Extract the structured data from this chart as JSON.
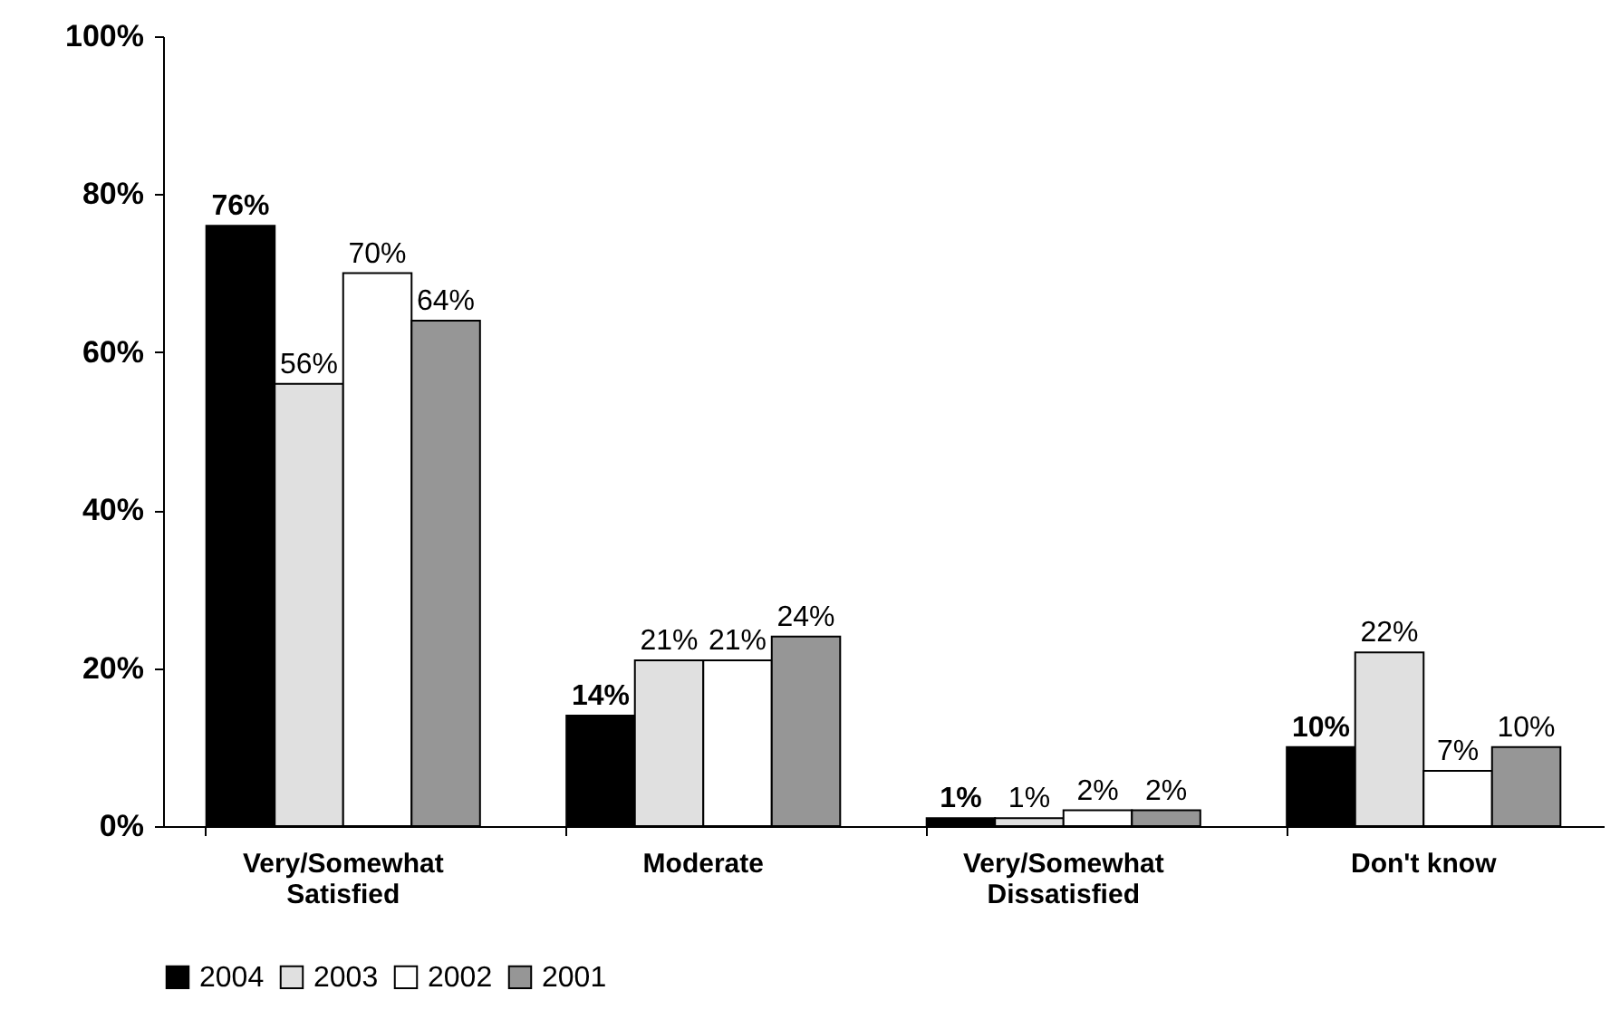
{
  "chart_data": {
    "type": "bar",
    "categories": [
      "Very/Somewhat Satisfied",
      "Moderate",
      "Very/Somewhat Dissatisfied",
      "Don't know"
    ],
    "series": [
      {
        "name": "2004",
        "color": "#000000",
        "values": [
          76,
          14,
          1,
          10
        ],
        "value_labels": [
          "76%",
          "14%",
          "1%",
          "10%"
        ]
      },
      {
        "name": "2003",
        "color": "#e0e0e0",
        "values": [
          56,
          21,
          1,
          22
        ],
        "value_labels": [
          "56%",
          "21%",
          "1%",
          "22%"
        ]
      },
      {
        "name": "2002",
        "color": "#ffffff",
        "values": [
          70,
          21,
          2,
          7
        ],
        "value_labels": [
          "70%",
          "21%",
          "2%",
          "7%"
        ]
      },
      {
        "name": "2001",
        "color": "#969696",
        "values": [
          64,
          24,
          2,
          10
        ],
        "value_labels": [
          "64%",
          "24%",
          "2%",
          "10%"
        ]
      }
    ],
    "ylim": [
      0,
      100
    ],
    "yticks": [
      {
        "value": 0,
        "label": "0%"
      },
      {
        "value": 20,
        "label": "20%"
      },
      {
        "value": 40,
        "label": "40%"
      },
      {
        "value": 60,
        "label": "60%"
      },
      {
        "value": 80,
        "label": "80%"
      },
      {
        "value": 100,
        "label": "100%"
      }
    ],
    "grid": false,
    "legend": "bottom"
  }
}
